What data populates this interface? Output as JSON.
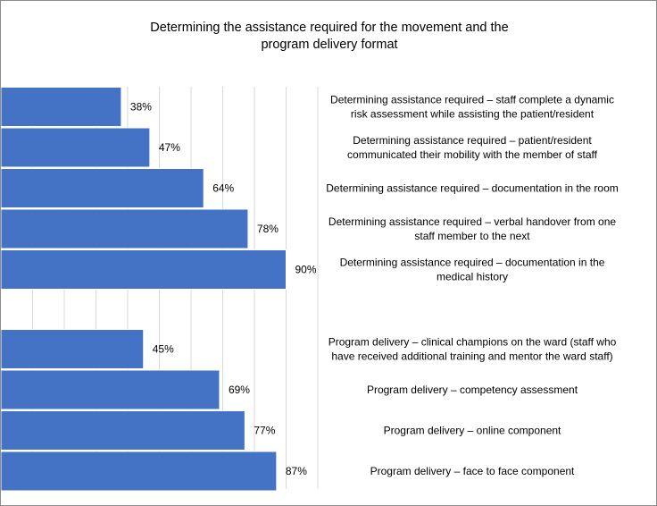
{
  "chart_data": {
    "type": "bar",
    "orientation": "horizontal",
    "title": "Determining the assistance required for the movement and the program delivery format",
    "title_lines": [
      "Determining the assistance required for the movement and the",
      "program delivery format"
    ],
    "bar_color": "#4472C4",
    "xlim": [
      0,
      100
    ],
    "grid": true,
    "legend": "none",
    "groups": [
      {
        "bars": [
          {
            "value": 38,
            "label": "38%",
            "category_lines": [
              "Determining assistance required – staff complete a dynamic",
              "risk assessment while assisting the patient/resident"
            ]
          },
          {
            "value": 47,
            "label": "47%",
            "category_lines": [
              "Determining assistance required – patient/resident",
              "communicated their mobility with the member of staff"
            ]
          },
          {
            "value": 64,
            "label": "64%",
            "category_lines": [
              "Determining assistance required – documentation in the room"
            ]
          },
          {
            "value": 78,
            "label": "78%",
            "category_lines": [
              "Determining assistance required – verbal handover from one",
              "staff member to the next"
            ]
          },
          {
            "value": 90,
            "label": "90%",
            "category_lines": [
              "Determining assistance required – documentation in the",
              "medical history"
            ]
          }
        ]
      },
      {
        "bars": [
          {
            "value": 45,
            "label": "45%",
            "category_lines": [
              "Program delivery – clinical champions on the ward (staff who",
              "have received additional training and mentor the ward staff)"
            ]
          },
          {
            "value": 69,
            "label": "69%",
            "category_lines": [
              "Program delivery – competency assessment"
            ]
          },
          {
            "value": 77,
            "label": "77%",
            "category_lines": [
              "Program delivery – online component"
            ]
          },
          {
            "value": 87,
            "label": "87%",
            "category_lines": [
              "Program delivery – face to face component"
            ]
          }
        ]
      }
    ]
  }
}
